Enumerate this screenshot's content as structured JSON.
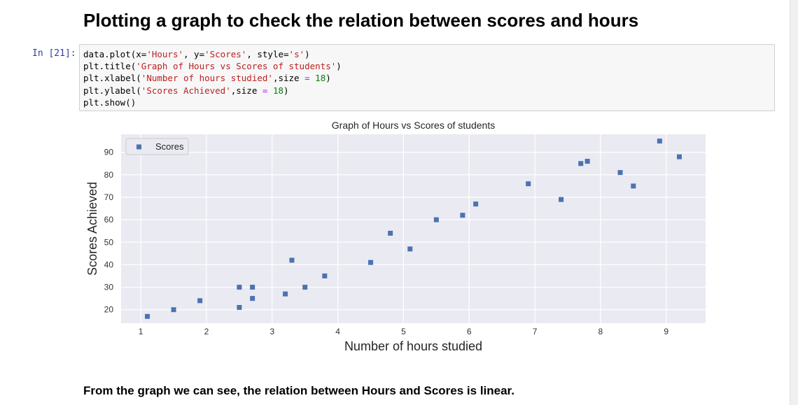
{
  "notebook": {
    "heading": "Plotting a graph to check the relation between scores and hours",
    "cell_prompt": "In [21]:",
    "code": [
      [
        {
          "t": "data.plot(x="
        },
        {
          "t": "'Hours'",
          "c": "str"
        },
        {
          "t": ", y="
        },
        {
          "t": "'Scores'",
          "c": "str"
        },
        {
          "t": ", style="
        },
        {
          "t": "'s'",
          "c": "str"
        },
        {
          "t": ")"
        }
      ],
      [
        {
          "t": "plt.title("
        },
        {
          "t": "'Graph of Hours vs Scores of students'",
          "c": "str"
        },
        {
          "t": ")"
        }
      ],
      [
        {
          "t": "plt.xlabel("
        },
        {
          "t": "'Number of hours studied'",
          "c": "str"
        },
        {
          "t": ",size "
        },
        {
          "t": "=",
          "c": "op"
        },
        {
          "t": " "
        },
        {
          "t": "18",
          "c": "num"
        },
        {
          "t": ")"
        }
      ],
      [
        {
          "t": "plt.ylabel("
        },
        {
          "t": "'Scores Achieved'",
          "c": "str"
        },
        {
          "t": ",size "
        },
        {
          "t": "=",
          "c": "op"
        },
        {
          "t": " "
        },
        {
          "t": "18",
          "c": "num"
        },
        {
          "t": ")"
        }
      ],
      [
        {
          "t": "plt.show()"
        }
      ]
    ],
    "conclusion": "From the graph we can see, the relation between Hours and Scores is linear."
  },
  "colors": {
    "marker": "#4c72b0",
    "plot_background": "#eaeaf2",
    "grid": "#ffffff",
    "prompt": "#303f9f"
  },
  "chart_data": {
    "type": "scatter",
    "title": "Graph of Hours vs Scores of students",
    "xlabel": "Number of hours studied",
    "ylabel": "Scores Achieved",
    "xlim": [
      0.7,
      9.6
    ],
    "ylim": [
      14,
      98
    ],
    "xticks": [
      1,
      2,
      3,
      4,
      5,
      6,
      7,
      8,
      9
    ],
    "yticks": [
      20,
      30,
      40,
      50,
      60,
      70,
      80,
      90
    ],
    "grid": true,
    "legend_position": "top-left",
    "marker": "square",
    "series": [
      {
        "name": "Scores",
        "x": [
          2.5,
          5.1,
          3.2,
          8.5,
          3.5,
          1.5,
          9.2,
          5.5,
          8.3,
          2.7,
          7.7,
          5.9,
          4.5,
          3.3,
          1.1,
          8.9,
          2.5,
          1.9,
          6.1,
          7.4,
          2.7,
          4.8,
          3.8,
          6.9,
          7.8
        ],
        "y": [
          21,
          47,
          27,
          75,
          30,
          20,
          88,
          60,
          81,
          25,
          85,
          62,
          41,
          42,
          17,
          95,
          30,
          24,
          67,
          69,
          30,
          54,
          35,
          76,
          86
        ]
      }
    ]
  }
}
